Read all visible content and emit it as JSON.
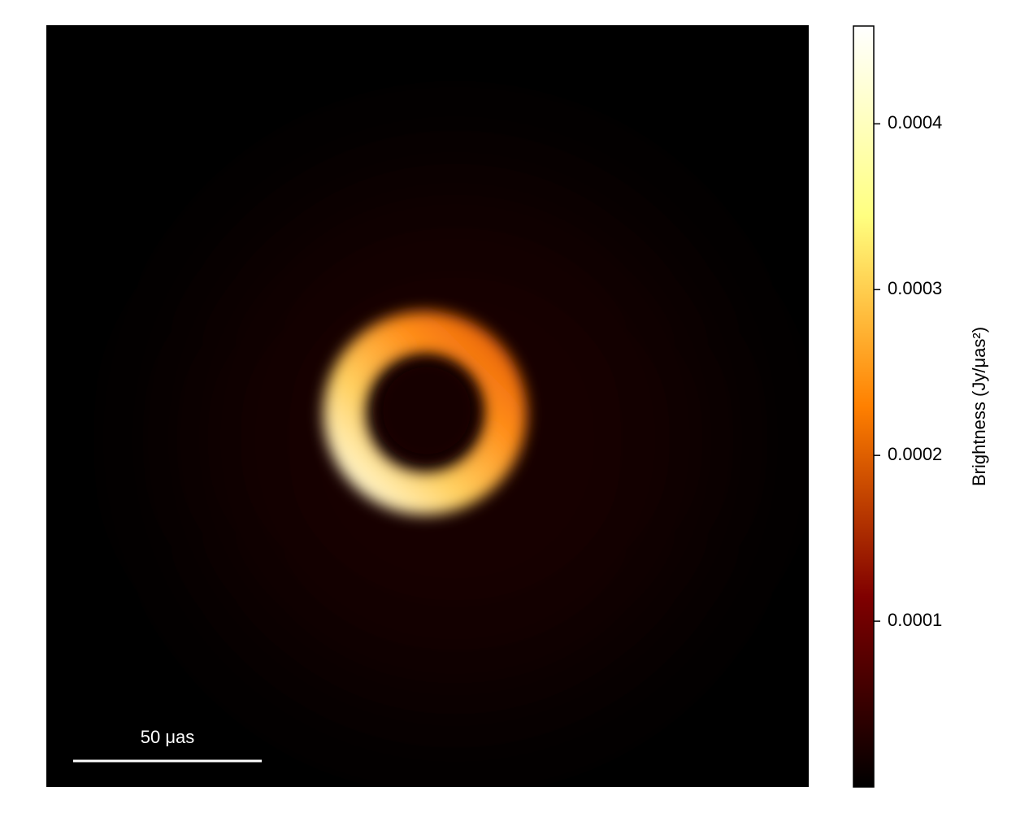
{
  "chart_data": {
    "type": "heatmap",
    "scale_bar": "50 μas",
    "colorbar": {
      "label": "Brightness (Jy/μas²)",
      "clim": [
        0,
        0.000459
      ],
      "ticks": [
        0.0001,
        0.0002,
        0.0003,
        0.0004
      ],
      "colormap": [
        "#000000",
        "#800000",
        "#ff8000",
        "#ffff80",
        "#ffffff"
      ]
    }
  }
}
